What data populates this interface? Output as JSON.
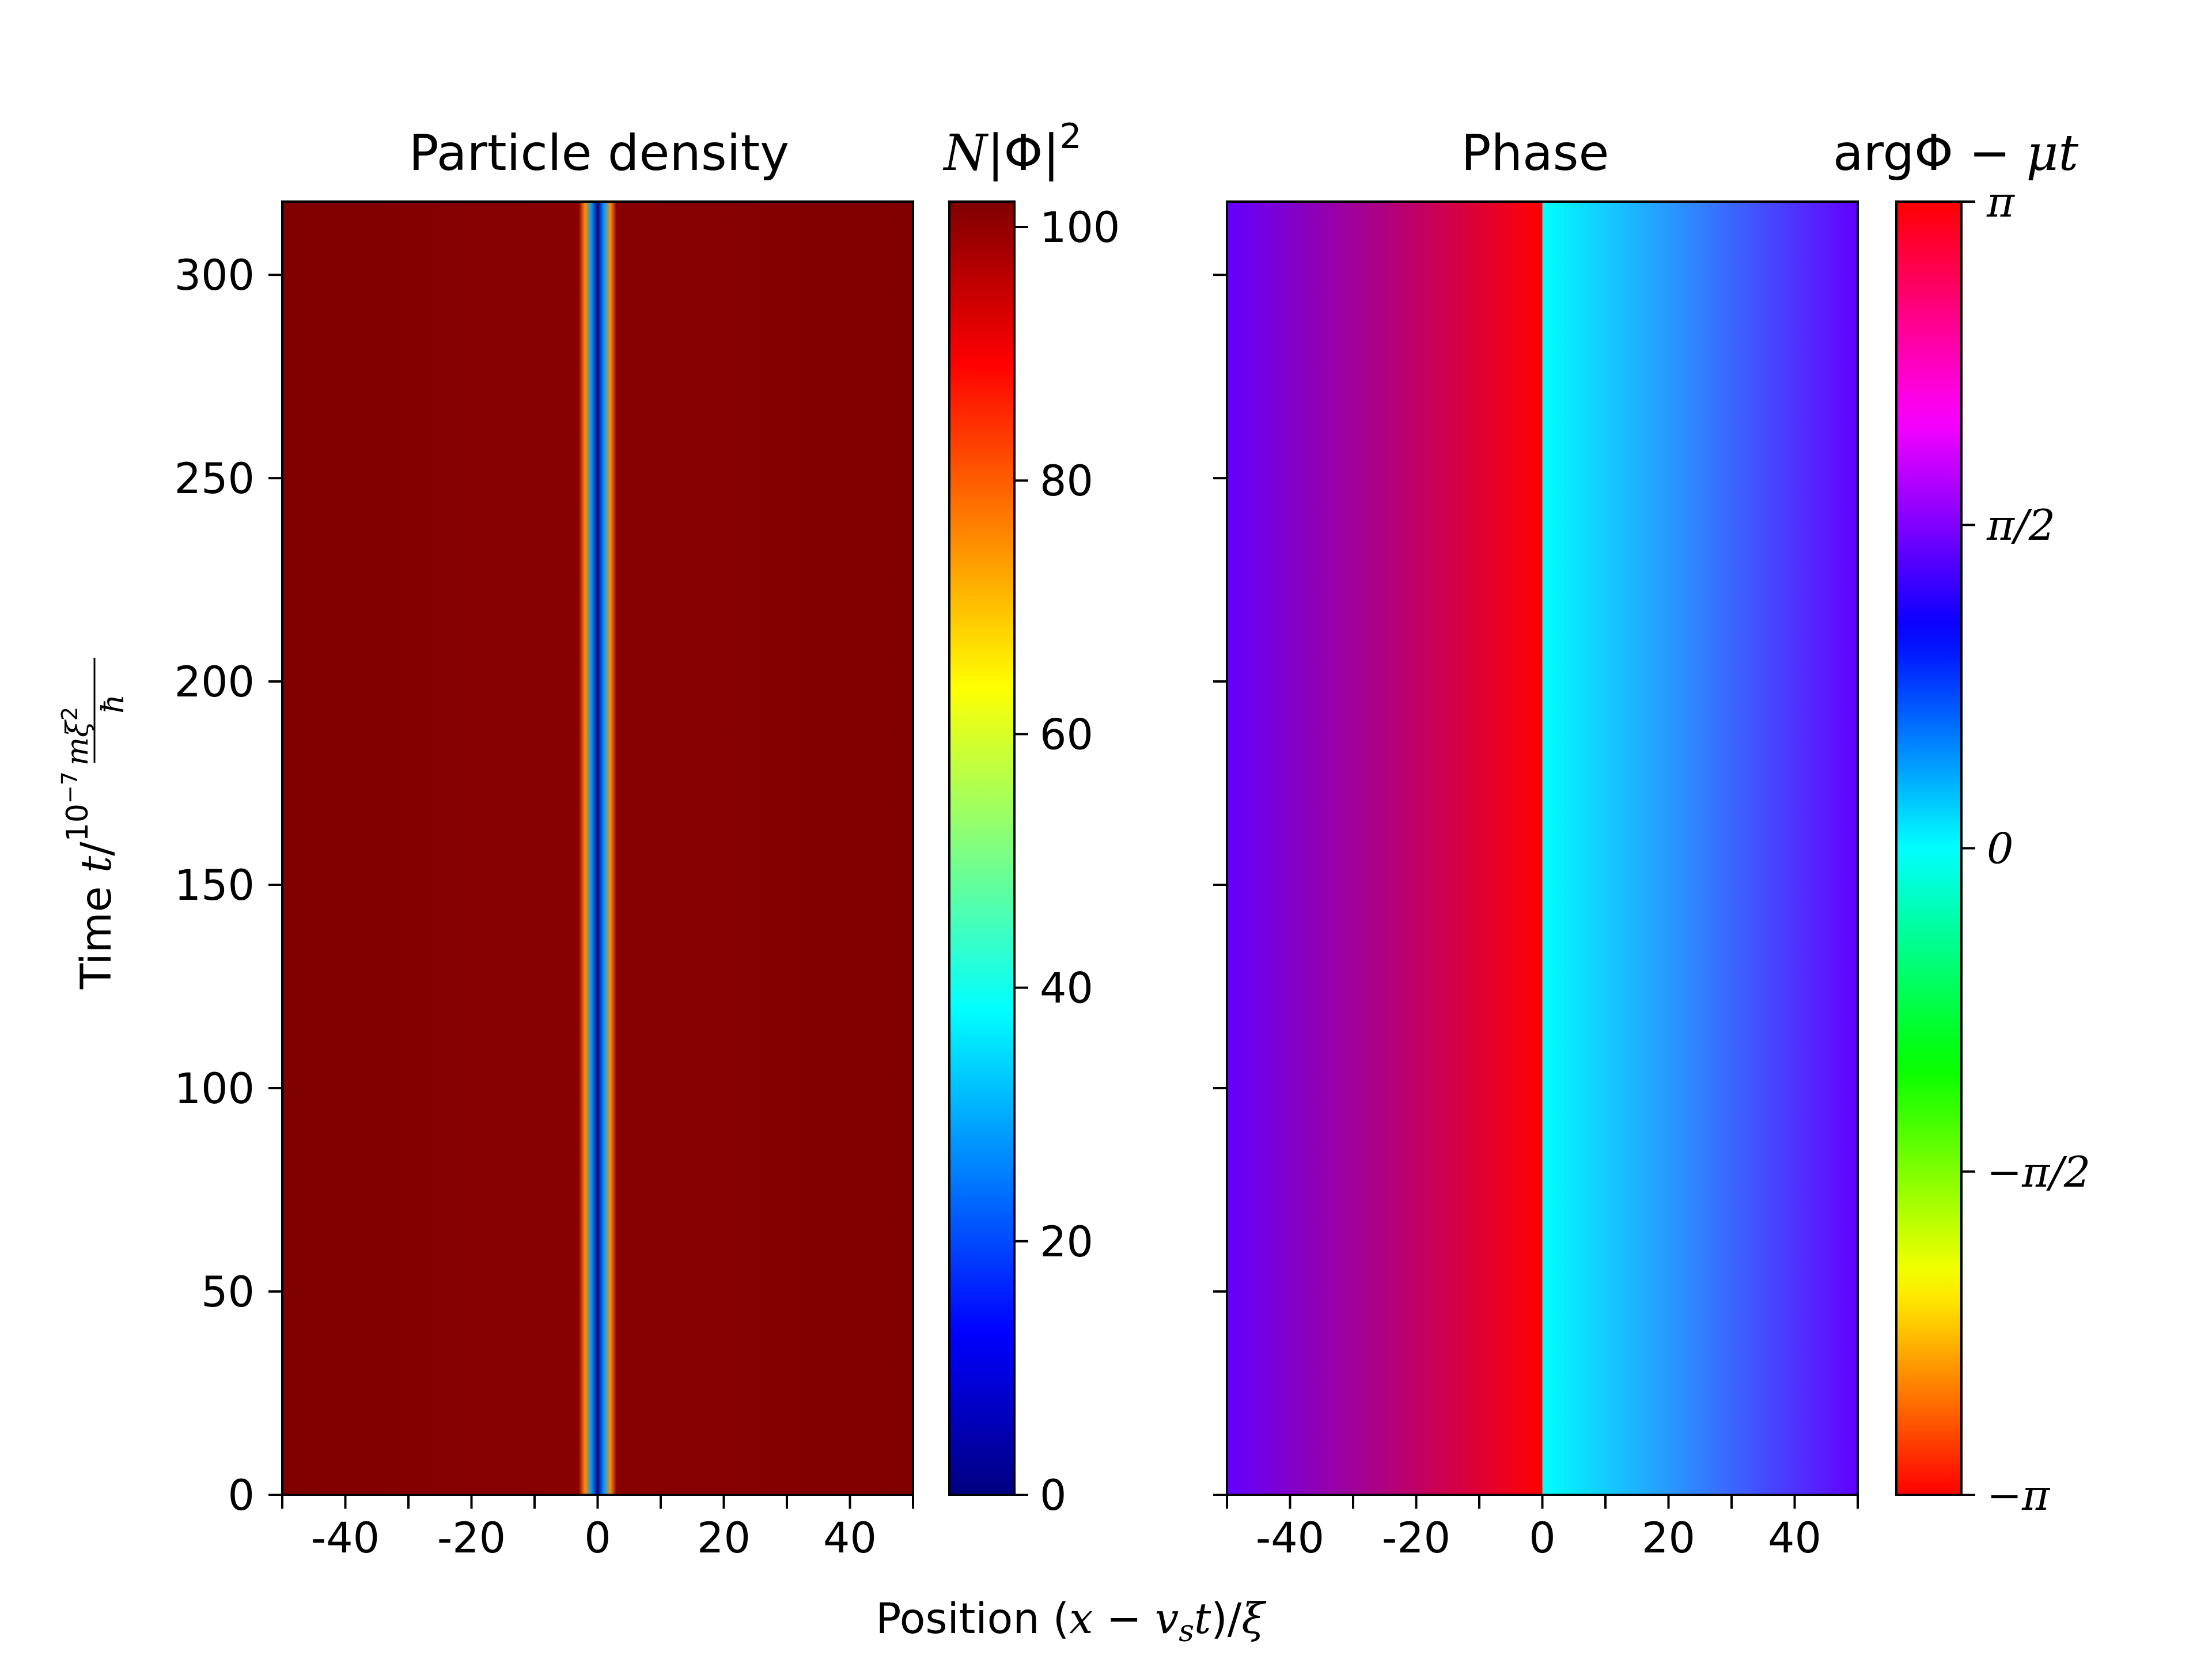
{
  "chart_data": [
    {
      "type": "heatmap",
      "title": "Particle density",
      "colorbar_label": "N|Φ|²",
      "xlabel": "Position (x − v_s t)/ξ",
      "ylabel": "Time t/10⁻⁷ mξ²/ħ",
      "xlim": [
        -50,
        50
      ],
      "ylim": [
        0,
        318
      ],
      "xticks": [
        "-40",
        "-20",
        "0",
        "20",
        "40"
      ],
      "yticks": [
        "0",
        "50",
        "100",
        "150",
        "200",
        "250",
        "300"
      ],
      "colormap": "jet",
      "clim": [
        0,
        102
      ],
      "colorbar_ticks": [
        "0",
        "20",
        "40",
        "60",
        "80",
        "100"
      ],
      "profile": {
        "x": [
          -50,
          -3,
          -2,
          -1,
          0,
          1,
          2,
          3,
          50
        ],
        "value": [
          102,
          101,
          75,
          28,
          0,
          28,
          75,
          101,
          102
        ]
      },
      "time_dependence": "none"
    },
    {
      "type": "heatmap",
      "title": "Phase",
      "colorbar_label": "argΦ − μt",
      "xlim": [
        -50,
        50
      ],
      "ylim": [
        0,
        318
      ],
      "xticks": [
        "-40",
        "-20",
        "0",
        "20",
        "40"
      ],
      "colormap": "hsv",
      "clim": [
        -3.14159,
        3.14159
      ],
      "colorbar_ticks": [
        "−π",
        "−π/2",
        "0",
        "π/2",
        "π"
      ],
      "profile": {
        "x": [
          -50,
          -0.01,
          0,
          50
        ],
        "value": [
          1.45,
          3.14159,
          0,
          1.45
        ]
      },
      "time_dependence": "none"
    }
  ],
  "labels": {
    "density_title": "Particle density",
    "phase_title": "Phase",
    "xlabel_prefix": "Position (",
    "xlabel_x": "x",
    "xlabel_minus": " − ",
    "xlabel_v": "v",
    "xlabel_s": "s",
    "xlabel_t": "t",
    "xlabel_close": ")/",
    "xlabel_xi": "ξ",
    "ylabel_prefix": "Time ",
    "ylabel_t": "t",
    "ylabel_slash": "/",
    "ylabel_scale": "10",
    "ylabel_exp": "−7",
    "ylabel_num": "mξ",
    "ylabel_num_sup": "2",
    "ylabel_den": "ħ",
    "cb1_N": "N",
    "cb1_abs": "|Φ|",
    "cb1_sup": "2",
    "cb2_arg": "argΦ",
    "cb2_minus": " − ",
    "cb2_mu": "μt"
  },
  "colors": {
    "background": "#ffffff",
    "axes": "#000000"
  }
}
